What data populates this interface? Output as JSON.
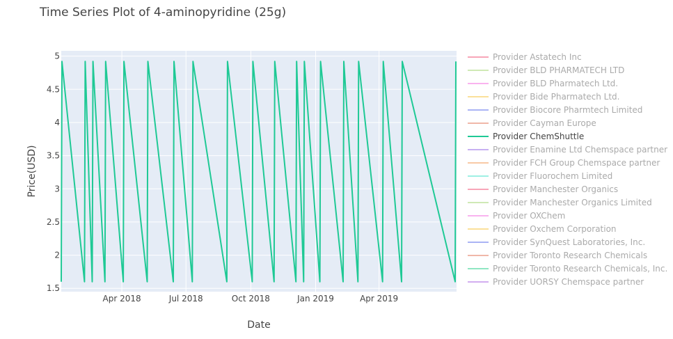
{
  "chart_data": {
    "type": "line",
    "title": "Time Series Plot of 4-aminopyridine (25g)",
    "xlabel": "Date",
    "ylabel": "Price(USD)",
    "x_range": [
      "2018-01-05",
      "2019-07-20"
    ],
    "ylim": [
      1.45,
      5.08
    ],
    "x_ticks": [
      {
        "date": "2018-04-01",
        "label": "Apr 2018"
      },
      {
        "date": "2018-07-01",
        "label": "Jul 2018"
      },
      {
        "date": "2018-10-01",
        "label": "Oct 2018"
      },
      {
        "date": "2019-01-01",
        "label": "Jan 2019"
      },
      {
        "date": "2019-04-01",
        "label": "Apr 2019"
      }
    ],
    "y_ticks": [
      {
        "value": 1.5,
        "label": "1.5"
      },
      {
        "value": 2,
        "label": "2"
      },
      {
        "value": 2.5,
        "label": "2.5"
      },
      {
        "value": 3,
        "label": "3"
      },
      {
        "value": 3.5,
        "label": "3.5"
      },
      {
        "value": 4,
        "label": "4"
      },
      {
        "value": 4.5,
        "label": "4.5"
      },
      {
        "value": 5,
        "label": "5"
      }
    ],
    "grid": true,
    "legend_position": "right",
    "series": [
      {
        "name": "Provider Astatech Inc",
        "color": "#f8a5b8",
        "visible": false
      },
      {
        "name": "Provider BLD PHARMATECH LTD",
        "color": "#cfe9b5",
        "visible": false
      },
      {
        "name": "Provider BLD Pharmatech Ltd.",
        "color": "#f9b3ef",
        "visible": false
      },
      {
        "name": "Provider Bide Pharmatech Ltd.",
        "color": "#fbe09a",
        "visible": false
      },
      {
        "name": "Provider Biocore Pharmtech Limited",
        "color": "#aab4f5",
        "visible": false
      },
      {
        "name": "Provider Cayman Europe",
        "color": "#f0b7a8",
        "visible": false
      },
      {
        "name": "Provider ChemShuttle",
        "color": "#1fc995",
        "visible": true,
        "points": [
          {
            "date": "2018-01-05",
            "price": 1.6
          },
          {
            "date": "2018-01-06",
            "price": 4.92
          },
          {
            "date": "2018-02-07",
            "price": 1.6
          },
          {
            "date": "2018-02-08",
            "price": 4.92
          },
          {
            "date": "2018-02-18",
            "price": 1.6
          },
          {
            "date": "2018-02-19",
            "price": 4.92
          },
          {
            "date": "2018-03-08",
            "price": 1.6
          },
          {
            "date": "2018-03-09",
            "price": 4.92
          },
          {
            "date": "2018-04-03",
            "price": 1.6
          },
          {
            "date": "2018-04-04",
            "price": 4.92
          },
          {
            "date": "2018-05-07",
            "price": 1.6
          },
          {
            "date": "2018-05-08",
            "price": 4.92
          },
          {
            "date": "2018-06-13",
            "price": 1.6
          },
          {
            "date": "2018-06-14",
            "price": 4.92
          },
          {
            "date": "2018-07-10",
            "price": 1.6
          },
          {
            "date": "2018-07-11",
            "price": 4.92
          },
          {
            "date": "2018-08-28",
            "price": 1.6
          },
          {
            "date": "2018-08-29",
            "price": 4.92
          },
          {
            "date": "2018-10-03",
            "price": 1.6
          },
          {
            "date": "2018-10-04",
            "price": 4.92
          },
          {
            "date": "2018-11-03",
            "price": 1.6
          },
          {
            "date": "2018-11-04",
            "price": 4.92
          },
          {
            "date": "2018-12-04",
            "price": 1.6
          },
          {
            "date": "2018-12-05",
            "price": 4.92
          },
          {
            "date": "2018-12-15",
            "price": 1.6
          },
          {
            "date": "2018-12-16",
            "price": 4.92
          },
          {
            "date": "2019-01-07",
            "price": 1.6
          },
          {
            "date": "2019-01-08",
            "price": 4.92
          },
          {
            "date": "2019-02-09",
            "price": 1.6
          },
          {
            "date": "2019-02-10",
            "price": 4.92
          },
          {
            "date": "2019-03-02",
            "price": 1.6
          },
          {
            "date": "2019-03-03",
            "price": 4.92
          },
          {
            "date": "2019-04-06",
            "price": 1.6
          },
          {
            "date": "2019-04-07",
            "price": 4.92
          },
          {
            "date": "2019-05-03",
            "price": 1.6
          },
          {
            "date": "2019-05-04",
            "price": 4.92
          },
          {
            "date": "2019-07-18",
            "price": 1.6
          },
          {
            "date": "2019-07-19",
            "price": 4.92
          }
        ]
      },
      {
        "name": "Provider Enamine Ltd Chemspace partner",
        "color": "#c7b0f2",
        "visible": false
      },
      {
        "name": "Provider FCH Group Chemspace partner",
        "color": "#f8c9a5",
        "visible": false
      },
      {
        "name": "Provider Fluorochem Limited",
        "color": "#9ef0e4",
        "visible": false
      },
      {
        "name": "Provider Manchester Organics",
        "color": "#f8a5b8",
        "visible": false
      },
      {
        "name": "Provider Manchester Organics Limited",
        "color": "#cfe9b5",
        "visible": false
      },
      {
        "name": "Provider OXChem",
        "color": "#f9b3ef",
        "visible": false
      },
      {
        "name": "Provider Oxchem Corporation",
        "color": "#fbe09a",
        "visible": false
      },
      {
        "name": "Provider SynQuest Laboratories, Inc.",
        "color": "#aab4f5",
        "visible": false
      },
      {
        "name": "Provider Toronto Research Chemicals",
        "color": "#f0b7a8",
        "visible": false
      },
      {
        "name": "Provider Toronto Research Chemicals, Inc.",
        "color": "#8fe6c3",
        "visible": false
      },
      {
        "name": "Provider UORSY Chemspace partner",
        "color": "#d2aef0",
        "visible": false
      }
    ]
  }
}
